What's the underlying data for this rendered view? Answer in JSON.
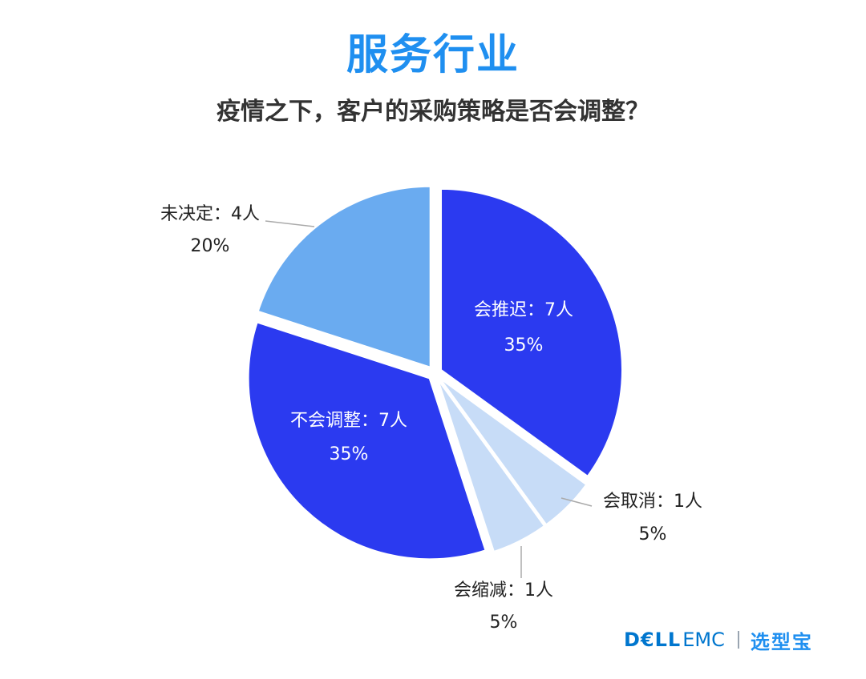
{
  "header": {
    "title": "服务行业",
    "subtitle": "疫情之下，客户的采购策略是否会调整？"
  },
  "chart_data": {
    "type": "pie",
    "slices": [
      {
        "label": "会推迟：7人",
        "count": 7,
        "percent": "35%",
        "value": 35,
        "color": "#2b3af0"
      },
      {
        "label": "会取消：1人",
        "count": 1,
        "percent": "5%",
        "value": 5,
        "color": "#c7dcf7"
      },
      {
        "label": "会缩减：1人",
        "count": 1,
        "percent": "5%",
        "value": 5,
        "color": "#c7dcf7"
      },
      {
        "label": "不会调整：7人",
        "count": 7,
        "percent": "35%",
        "value": 35,
        "color": "#2b3af0"
      },
      {
        "label": "未决定：4人",
        "count": 4,
        "percent": "20%",
        "value": 20,
        "color": "#6aabf0"
      }
    ]
  },
  "footer": {
    "brand_dell": "D€LL",
    "brand_emc": "EMC",
    "brand_partner": "选型宝"
  }
}
